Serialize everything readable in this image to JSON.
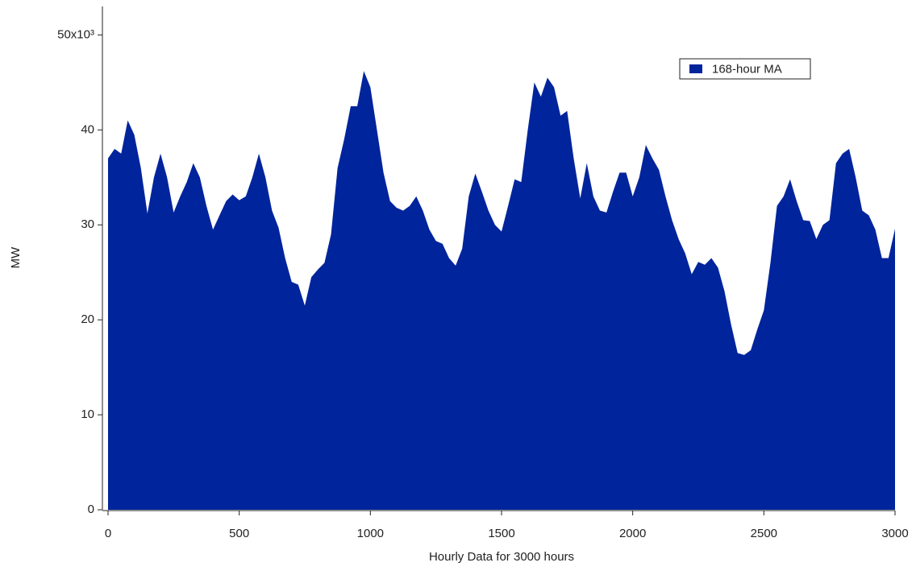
{
  "chart_data": {
    "type": "area",
    "xlabel": "Hourly Data for 3000 hours",
    "ylabel": "MW",
    "x": [
      0,
      25,
      50,
      75,
      100,
      125,
      150,
      175,
      200,
      225,
      250,
      275,
      300,
      325,
      350,
      375,
      400,
      425,
      450,
      475,
      500,
      525,
      550,
      575,
      600,
      625,
      650,
      675,
      700,
      725,
      750,
      775,
      800,
      825,
      850,
      875,
      900,
      925,
      950,
      975,
      1000,
      1025,
      1050,
      1075,
      1100,
      1125,
      1150,
      1175,
      1200,
      1225,
      1250,
      1275,
      1300,
      1325,
      1350,
      1375,
      1400,
      1425,
      1450,
      1475,
      1500,
      1525,
      1550,
      1575,
      1600,
      1625,
      1650,
      1675,
      1700,
      1725,
      1750,
      1775,
      1800,
      1825,
      1850,
      1875,
      1900,
      1925,
      1950,
      1975,
      2000,
      2025,
      2050,
      2075,
      2100,
      2125,
      2150,
      2175,
      2200,
      2225,
      2250,
      2275,
      2300,
      2325,
      2350,
      2375,
      2400,
      2425,
      2450,
      2475,
      2500,
      2525,
      2550,
      2575,
      2600,
      2625,
      2650,
      2675,
      2700,
      2725,
      2750,
      2775,
      2800,
      2825,
      2850,
      2875,
      2900,
      2925,
      2950,
      2975,
      3000
    ],
    "series": [
      {
        "name": "168-hour MA",
        "color": "#00249c",
        "values": [
          37000,
          38000,
          37500,
          41000,
          39500,
          36000,
          31200,
          35000,
          37500,
          35000,
          31300,
          33000,
          34500,
          36500,
          35000,
          32000,
          29500,
          31000,
          32500,
          33200,
          32600,
          33000,
          35000,
          37500,
          35000,
          31500,
          29700,
          26500,
          24000,
          23700,
          21500,
          24500,
          25300,
          26000,
          29000,
          36000,
          39000,
          42500,
          42500,
          46200,
          44500,
          40000,
          35500,
          32500,
          31800,
          31500,
          32000,
          33000,
          31500,
          29500,
          28300,
          28000,
          26500,
          25700,
          27500,
          33000,
          35400,
          33500,
          31500,
          30000,
          29300,
          32000,
          34800,
          34500,
          40000,
          45000,
          43500,
          45500,
          44500,
          41500,
          42000,
          37000,
          32800,
          36500,
          33000,
          31500,
          31300,
          33500,
          35500,
          35500,
          33000,
          35000,
          38400,
          37000,
          35800,
          33000,
          30500,
          28500,
          27000,
          24800,
          26100,
          25800,
          26500,
          25500,
          23000,
          19500,
          16500,
          16300,
          16800,
          19000,
          21000,
          26000,
          32000,
          33000,
          34800,
          32500,
          30500,
          30400,
          28500,
          30000,
          30500,
          36500,
          37500,
          38000,
          35000,
          31500,
          31000,
          29500,
          26500,
          26500,
          29600
        ]
      }
    ],
    "xlim": [
      0,
      3000
    ],
    "xticks": [
      0,
      500,
      1000,
      1500,
      2000,
      2500,
      3000
    ],
    "ylim": [
      0,
      53000
    ],
    "yticks": [
      0,
      {
        "value": 10000,
        "label": "10"
      },
      {
        "value": 20000,
        "label": "20"
      },
      {
        "value": 30000,
        "label": "30"
      },
      {
        "value": 40000,
        "label": "40"
      },
      {
        "value": 50000,
        "label": "50x10³"
      }
    ],
    "legend": "top-right",
    "grid": false
  }
}
